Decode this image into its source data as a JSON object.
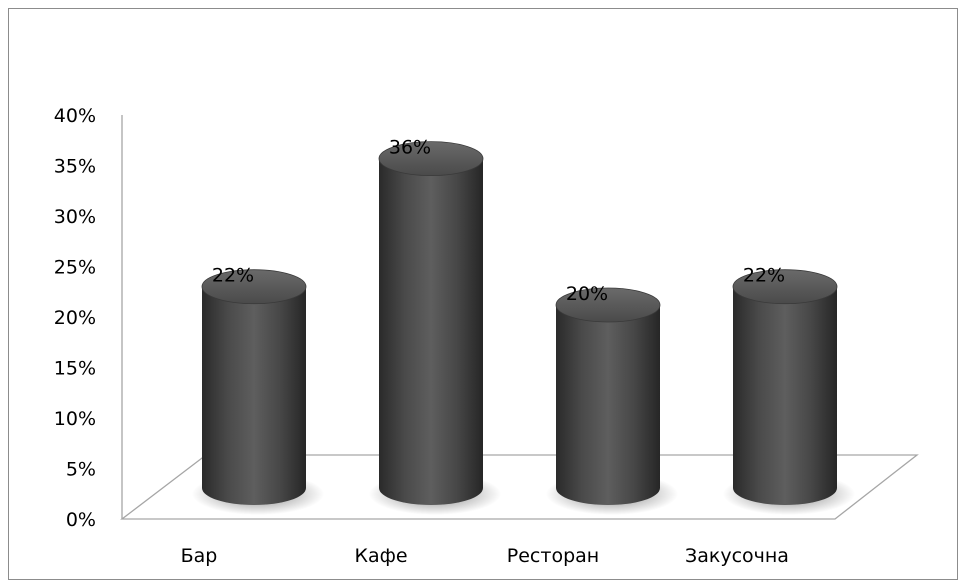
{
  "chart_data": {
    "type": "bar",
    "style": "3d-cylinder",
    "categories": [
      "Бар",
      "Кафе",
      "Ресторан",
      "Закусочна"
    ],
    "values": [
      22,
      36,
      20,
      22
    ],
    "data_labels": [
      "22%",
      "36%",
      "20%",
      "22%"
    ],
    "y_ticks": [
      "0%",
      "5%",
      "10%",
      "15%",
      "20%",
      "25%",
      "30%",
      "35%",
      "40%"
    ],
    "ylim": [
      0,
      40
    ],
    "unit": "%",
    "bar_color": "#4d4d4d",
    "grid": false,
    "legend": "none"
  }
}
